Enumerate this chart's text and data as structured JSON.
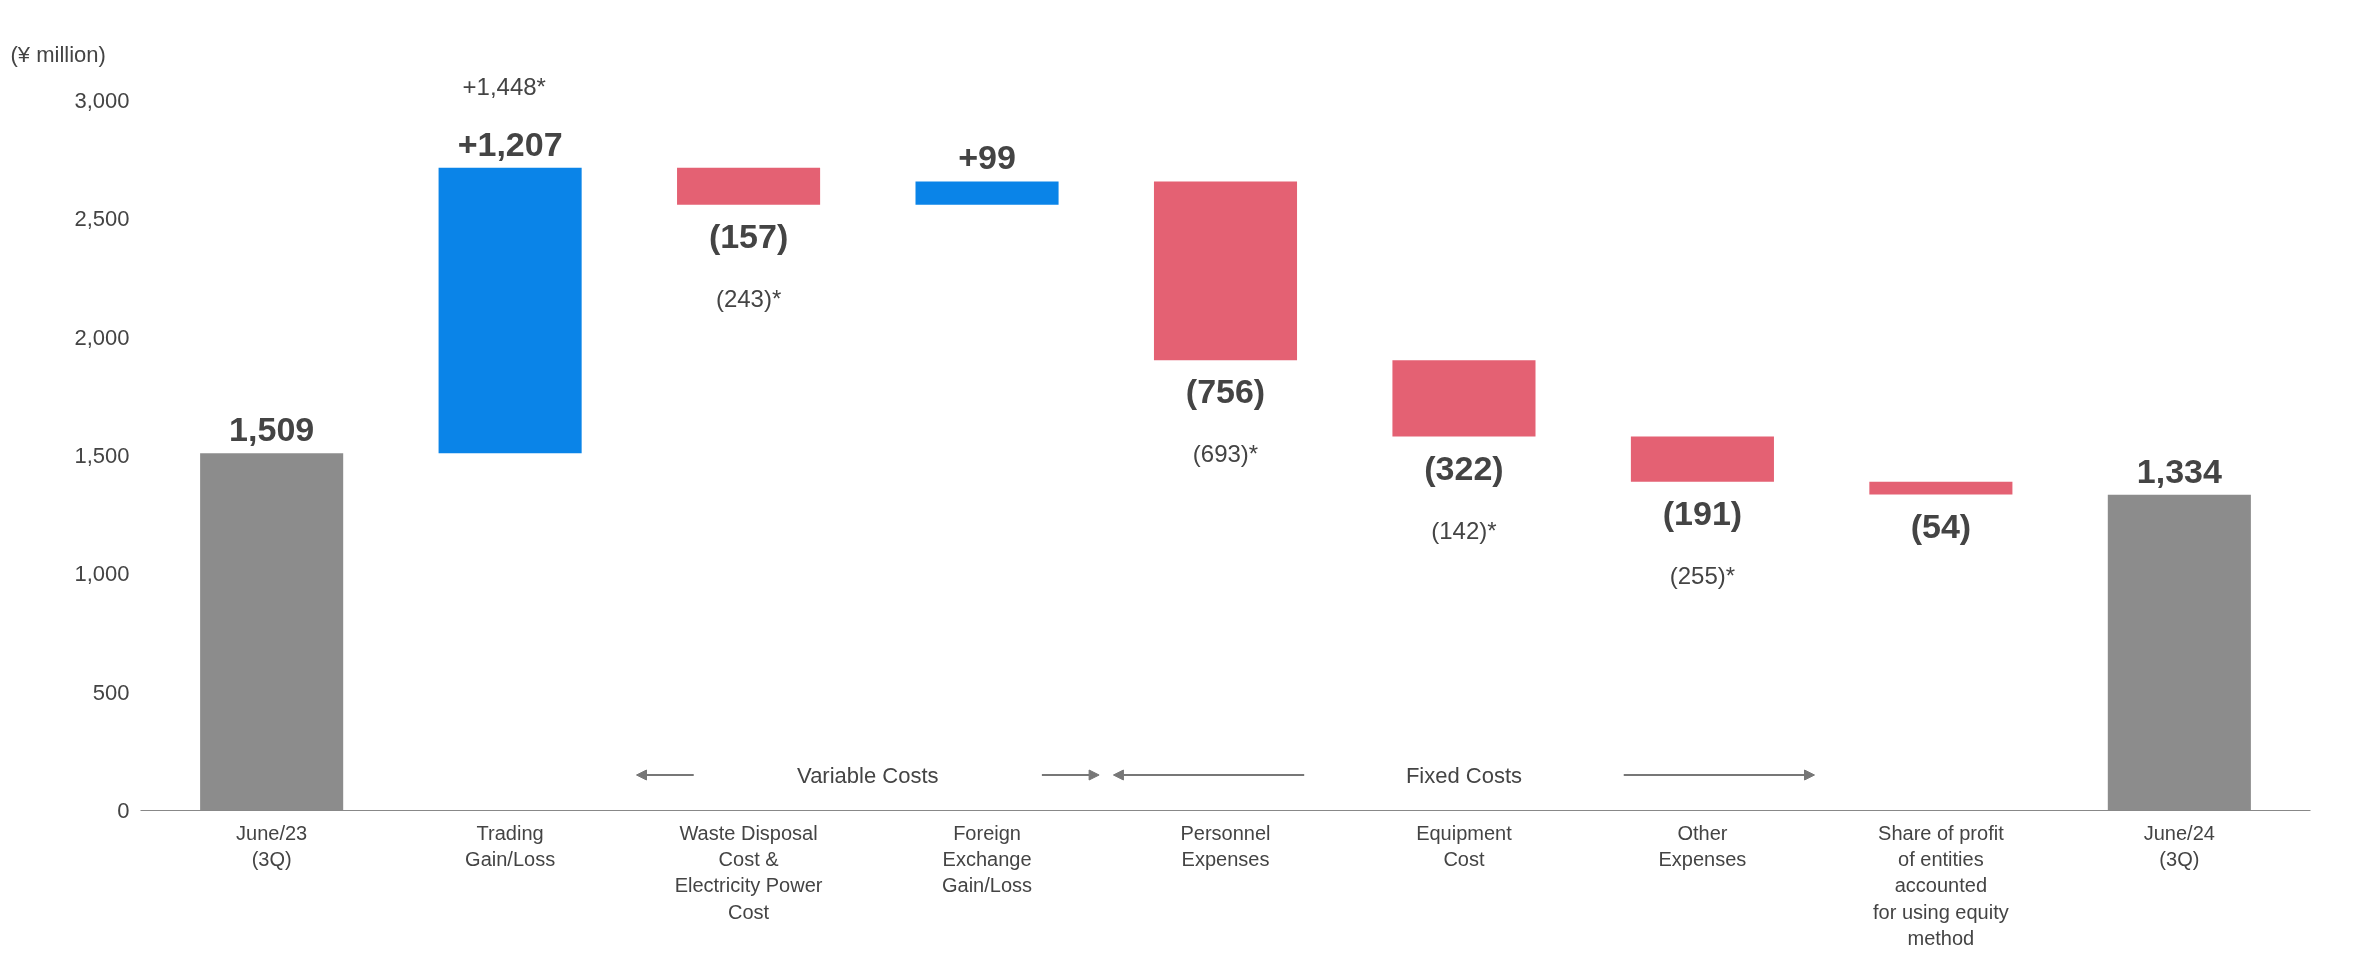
{
  "chart_data": {
    "type": "bar",
    "ylabel": "(¥ million)",
    "categories": [
      "June/23\n(3Q)",
      "Trading\nGain/Loss",
      "Waste Disposal\nCost &\nElectricity Power\nCost",
      "Foreign\nExchange\nGain/Loss",
      "Personnel\nExpenses",
      "Equipment\nCost",
      "Other\nExpenses",
      "Share of profit\nof entities\naccounted\nfor using equity\nmethod",
      "June/24\n(3Q)"
    ],
    "values": [
      1509,
      1207,
      -157,
      99,
      -756,
      -322,
      -191,
      -54,
      1334
    ],
    "base": [
      0,
      1509,
      2716,
      2559,
      2658,
      1902,
      1580,
      1389,
      0
    ],
    "colors": [
      "#8c8c8c",
      "#0a84e8",
      "#e46173",
      "#0a84e8",
      "#e46173",
      "#e46173",
      "#e46173",
      "#e46173",
      "#8c8c8c"
    ],
    "value_labels": [
      "1,509",
      "+1,207",
      "(157)",
      "+99",
      "(756)",
      "(322)",
      "(191)",
      "(54)",
      "1,334"
    ],
    "annotations": [
      "+1,448*",
      "(243)*",
      "(693)*",
      "(142)*",
      "(255)*",
      "Variable Costs",
      "Fixed Costs"
    ],
    "ylim": [
      0,
      3000
    ],
    "yticks": [
      0,
      {
        "value": 500,
        "label": "500"
      },
      {
        "value": 1000,
        "label": "1,000"
      },
      {
        "value": 1500,
        "label": "1,500"
      },
      {
        "value": 2000,
        "label": "2,000"
      },
      {
        "value": 2500,
        "label": "2,500"
      },
      {
        "value": 3000,
        "label": "3,000"
      }
    ],
    "grid": false
  }
}
